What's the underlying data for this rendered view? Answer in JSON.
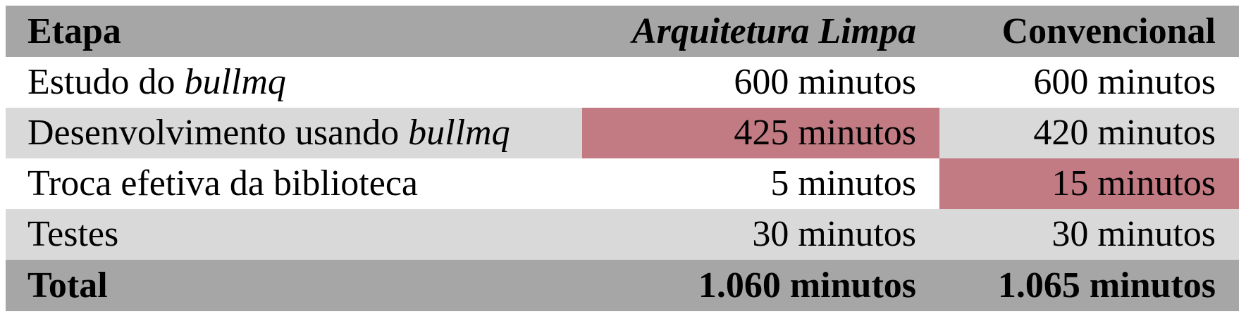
{
  "table": {
    "header": {
      "stage": "Etapa",
      "clean_arch": "Arquitetura Limpa",
      "conventional": "Convencional"
    },
    "rows": [
      {
        "stage_plain": "Estudo do ",
        "stage_italic": "bullmq",
        "clean_arch": "600 minutos",
        "conventional": "600 minutos"
      },
      {
        "stage_plain": "Desenvolvimento usando ",
        "stage_italic": "bullmq",
        "clean_arch": "425 minutos",
        "conventional": "420 minutos"
      },
      {
        "stage_plain": "Troca efetiva da biblioteca",
        "clean_arch": "5 minutos",
        "conventional": "15 minutos"
      },
      {
        "stage_plain": "Testes",
        "clean_arch": "30 minutos",
        "conventional": "30 minutos"
      }
    ],
    "total": {
      "stage": "Total",
      "clean_arch": "1.060 minutos",
      "conventional": "1.065 minutos"
    },
    "highlight_color": "#c27a83",
    "header_bg": "#a6a6a6",
    "stripe_bg": "#d9d9d9"
  }
}
